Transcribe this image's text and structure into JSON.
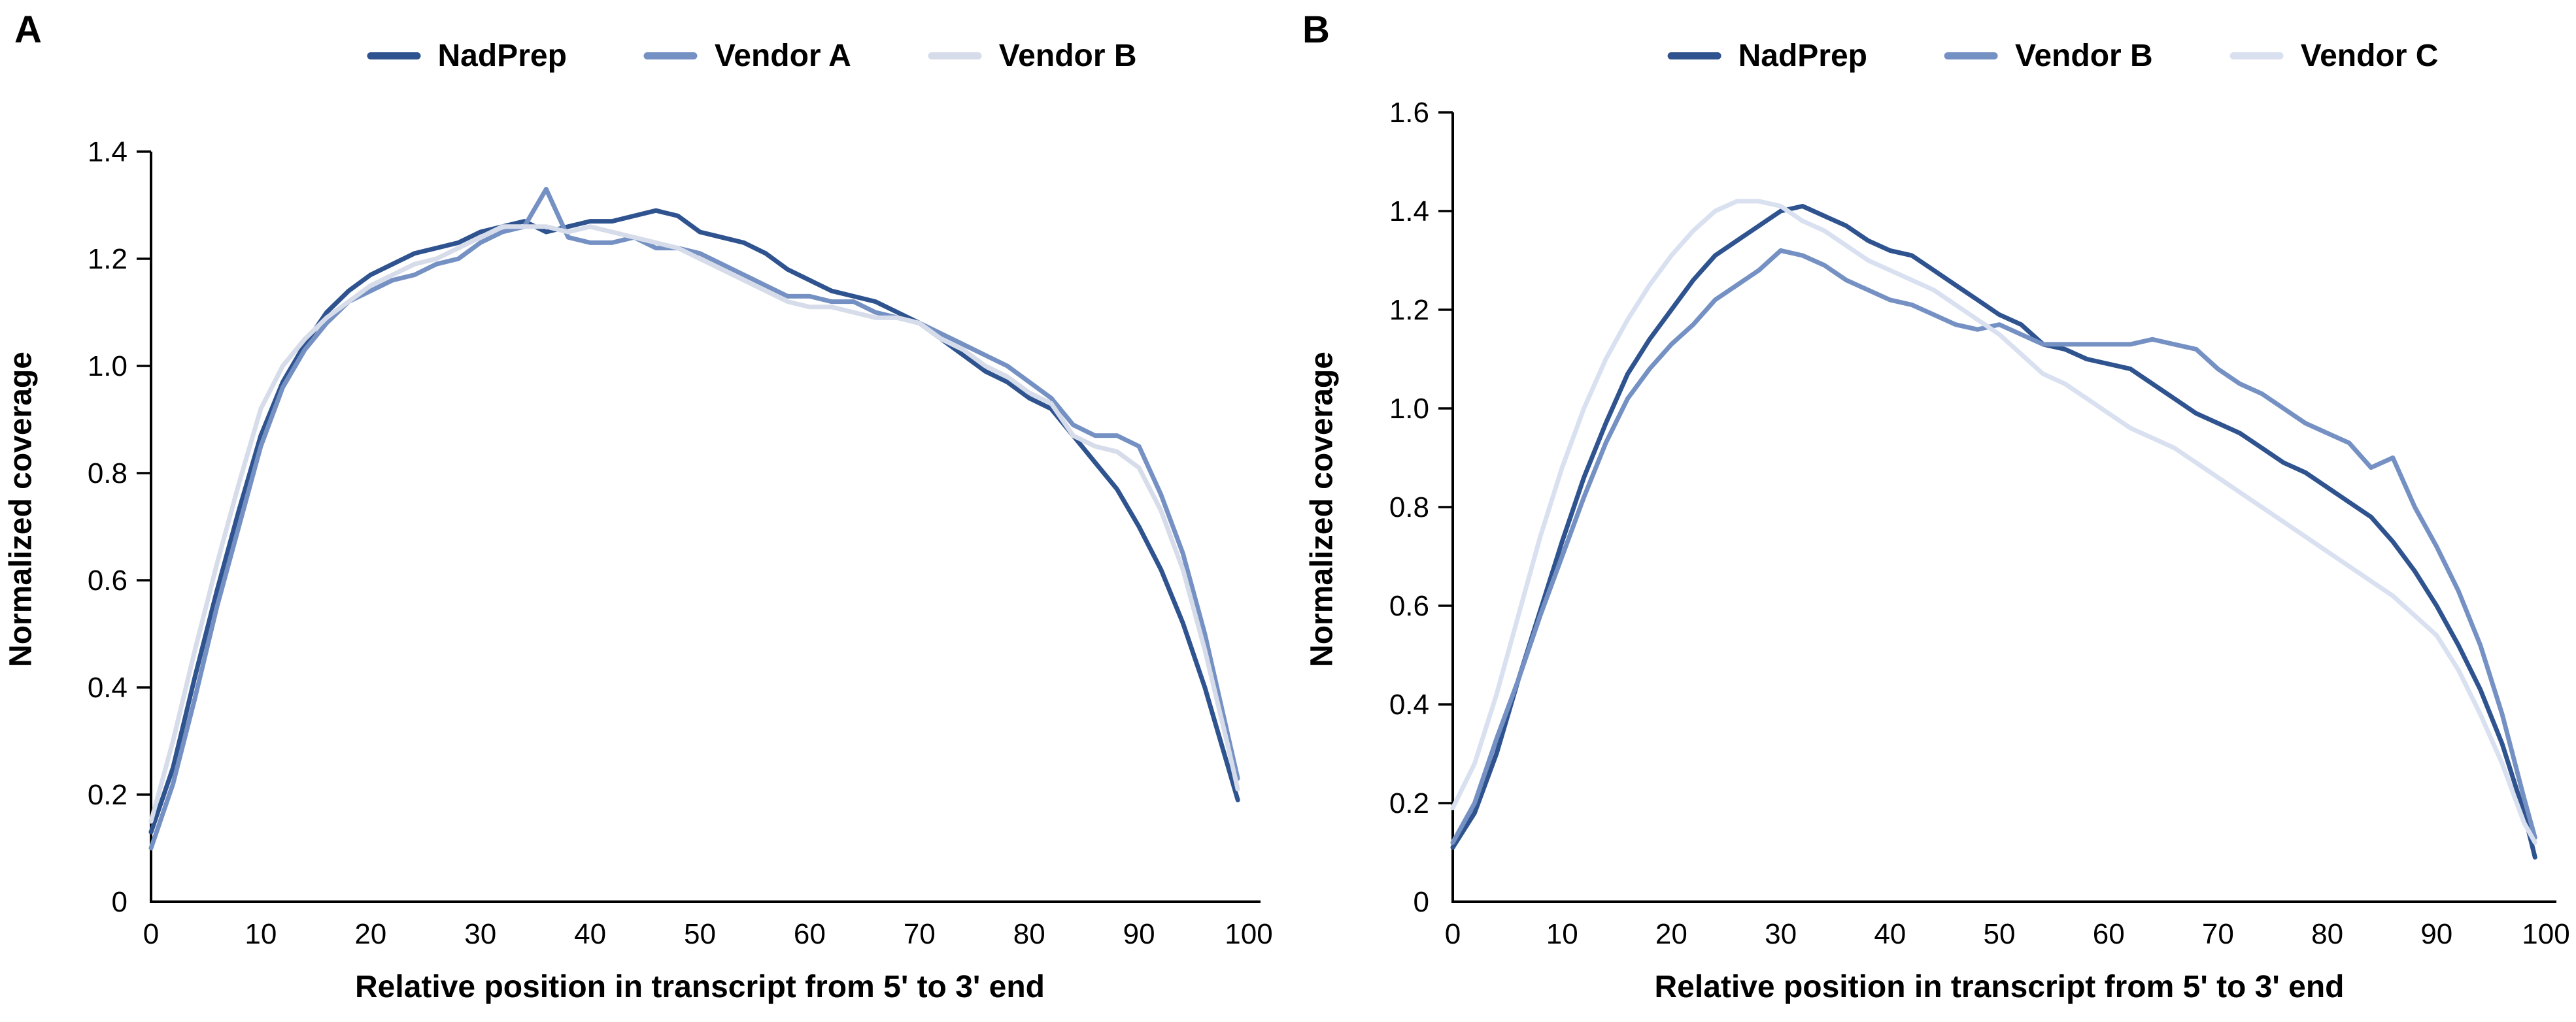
{
  "figure": {
    "background": "#ffffff",
    "axis_color": "#000000",
    "text_color": "#000000"
  },
  "chart_data": [
    {
      "panel": "A",
      "type": "line",
      "xlabel": "Relative position in transcript from 5' to 3' end",
      "ylabel": "Normalized coverage",
      "xlim": [
        0,
        100
      ],
      "ylim": [
        0,
        1.4
      ],
      "grid": false,
      "legend_position": "top",
      "x_tick_values": [
        0,
        10,
        20,
        30,
        40,
        50,
        60,
        70,
        80,
        90,
        100
      ],
      "x_tick_labels": [
        "0",
        "10",
        "20",
        "30",
        "40",
        "50",
        "60",
        "70",
        "80",
        "90",
        "100"
      ],
      "y_tick_values": [
        0,
        0.2,
        0.4,
        0.6,
        0.8,
        1.0,
        1.2,
        1.4
      ],
      "y_tick_labels": [
        "0",
        "0.2",
        "0.4",
        "0.6",
        "0.8",
        "1.0",
        "1.2",
        "1.4"
      ],
      "x": [
        0,
        2,
        4,
        6,
        8,
        10,
        12,
        14,
        16,
        18,
        20,
        22,
        24,
        26,
        28,
        30,
        32,
        34,
        36,
        38,
        40,
        42,
        44,
        46,
        48,
        50,
        52,
        54,
        56,
        58,
        60,
        62,
        64,
        66,
        68,
        70,
        72,
        74,
        76,
        78,
        80,
        82,
        84,
        86,
        88,
        90,
        92,
        94,
        96,
        98,
        99
      ],
      "series": [
        {
          "name": "NadPrep",
          "color": "#2E538F",
          "values": [
            0.13,
            0.25,
            0.42,
            0.58,
            0.73,
            0.87,
            0.97,
            1.04,
            1.1,
            1.14,
            1.17,
            1.19,
            1.21,
            1.22,
            1.23,
            1.25,
            1.26,
            1.27,
            1.25,
            1.26,
            1.27,
            1.27,
            1.28,
            1.29,
            1.28,
            1.25,
            1.24,
            1.23,
            1.21,
            1.18,
            1.16,
            1.14,
            1.13,
            1.12,
            1.1,
            1.08,
            1.05,
            1.02,
            0.99,
            0.97,
            0.94,
            0.92,
            0.87,
            0.82,
            0.77,
            0.7,
            0.62,
            0.52,
            0.4,
            0.26,
            0.19
          ]
        },
        {
          "name": "Vendor A",
          "color": "#7591C4",
          "values": [
            0.1,
            0.22,
            0.38,
            0.55,
            0.7,
            0.85,
            0.96,
            1.03,
            1.08,
            1.12,
            1.14,
            1.16,
            1.17,
            1.19,
            1.2,
            1.23,
            1.25,
            1.26,
            1.33,
            1.24,
            1.23,
            1.23,
            1.24,
            1.22,
            1.22,
            1.21,
            1.19,
            1.17,
            1.15,
            1.13,
            1.13,
            1.12,
            1.12,
            1.1,
            1.09,
            1.08,
            1.06,
            1.04,
            1.02,
            1.0,
            0.97,
            0.94,
            0.89,
            0.87,
            0.87,
            0.85,
            0.76,
            0.65,
            0.5,
            0.32,
            0.23
          ]
        },
        {
          "name": "Vendor B",
          "color": "#D6DCE9",
          "values": [
            0.15,
            0.3,
            0.47,
            0.63,
            0.78,
            0.92,
            1.0,
            1.05,
            1.09,
            1.12,
            1.15,
            1.17,
            1.19,
            1.2,
            1.22,
            1.24,
            1.26,
            1.26,
            1.26,
            1.25,
            1.26,
            1.25,
            1.24,
            1.23,
            1.22,
            1.2,
            1.18,
            1.16,
            1.14,
            1.12,
            1.11,
            1.11,
            1.1,
            1.09,
            1.09,
            1.08,
            1.05,
            1.03,
            1.0,
            0.98,
            0.95,
            0.93,
            0.87,
            0.85,
            0.84,
            0.81,
            0.73,
            0.62,
            0.47,
            0.3,
            0.21
          ]
        }
      ]
    },
    {
      "panel": "B",
      "type": "line",
      "xlabel": "Relative position in transcript from 5' to 3' end",
      "ylabel": "Normalized coverage",
      "xlim": [
        0,
        100
      ],
      "ylim": [
        0,
        1.6
      ],
      "grid": false,
      "legend_position": "top",
      "x_tick_values": [
        0,
        10,
        20,
        30,
        40,
        50,
        60,
        70,
        80,
        90,
        100
      ],
      "x_tick_labels": [
        "0",
        "10",
        "20",
        "30",
        "40",
        "50",
        "60",
        "70",
        "80",
        "90",
        "100"
      ],
      "y_tick_values": [
        0,
        0.2,
        0.4,
        0.6,
        0.8,
        1.0,
        1.2,
        1.4,
        1.6
      ],
      "y_tick_labels": [
        "0",
        "0.2",
        "0.4",
        "0.6",
        "0.8",
        "1.0",
        "1.2",
        "1.4",
        "1.6"
      ],
      "x": [
        0,
        2,
        4,
        6,
        8,
        10,
        12,
        14,
        16,
        18,
        20,
        22,
        24,
        26,
        28,
        30,
        32,
        34,
        36,
        38,
        40,
        42,
        44,
        46,
        48,
        50,
        52,
        54,
        56,
        58,
        60,
        62,
        64,
        66,
        68,
        70,
        72,
        74,
        76,
        78,
        80,
        82,
        84,
        86,
        88,
        90,
        92,
        94,
        96,
        98,
        99
      ],
      "series": [
        {
          "name": "NadPrep",
          "color": "#2E538F",
          "values": [
            0.11,
            0.18,
            0.3,
            0.45,
            0.59,
            0.73,
            0.86,
            0.97,
            1.07,
            1.14,
            1.2,
            1.26,
            1.31,
            1.34,
            1.37,
            1.4,
            1.41,
            1.39,
            1.37,
            1.34,
            1.32,
            1.31,
            1.28,
            1.25,
            1.22,
            1.19,
            1.17,
            1.13,
            1.12,
            1.1,
            1.09,
            1.08,
            1.05,
            1.02,
            0.99,
            0.97,
            0.95,
            0.92,
            0.89,
            0.87,
            0.84,
            0.81,
            0.78,
            0.73,
            0.67,
            0.6,
            0.52,
            0.43,
            0.32,
            0.18,
            0.09
          ]
        },
        {
          "name": "Vendor B",
          "color": "#7591C4",
          "values": [
            0.12,
            0.2,
            0.33,
            0.45,
            0.58,
            0.7,
            0.82,
            0.93,
            1.02,
            1.08,
            1.13,
            1.17,
            1.22,
            1.25,
            1.28,
            1.32,
            1.31,
            1.29,
            1.26,
            1.24,
            1.22,
            1.21,
            1.19,
            1.17,
            1.16,
            1.17,
            1.15,
            1.13,
            1.13,
            1.13,
            1.13,
            1.13,
            1.14,
            1.13,
            1.12,
            1.08,
            1.05,
            1.03,
            1.0,
            0.97,
            0.95,
            0.93,
            0.88,
            0.9,
            0.8,
            0.72,
            0.63,
            0.52,
            0.38,
            0.21,
            0.13
          ]
        },
        {
          "name": "Vendor C",
          "color": "#D9E0F0",
          "values": [
            0.19,
            0.28,
            0.42,
            0.58,
            0.74,
            0.88,
            1.0,
            1.1,
            1.18,
            1.25,
            1.31,
            1.36,
            1.4,
            1.42,
            1.42,
            1.41,
            1.38,
            1.36,
            1.33,
            1.3,
            1.28,
            1.26,
            1.24,
            1.21,
            1.18,
            1.15,
            1.11,
            1.07,
            1.05,
            1.02,
            0.99,
            0.96,
            0.94,
            0.92,
            0.89,
            0.86,
            0.83,
            0.8,
            0.77,
            0.74,
            0.71,
            0.68,
            0.65,
            0.62,
            0.58,
            0.54,
            0.47,
            0.38,
            0.28,
            0.16,
            0.12
          ]
        }
      ]
    }
  ]
}
